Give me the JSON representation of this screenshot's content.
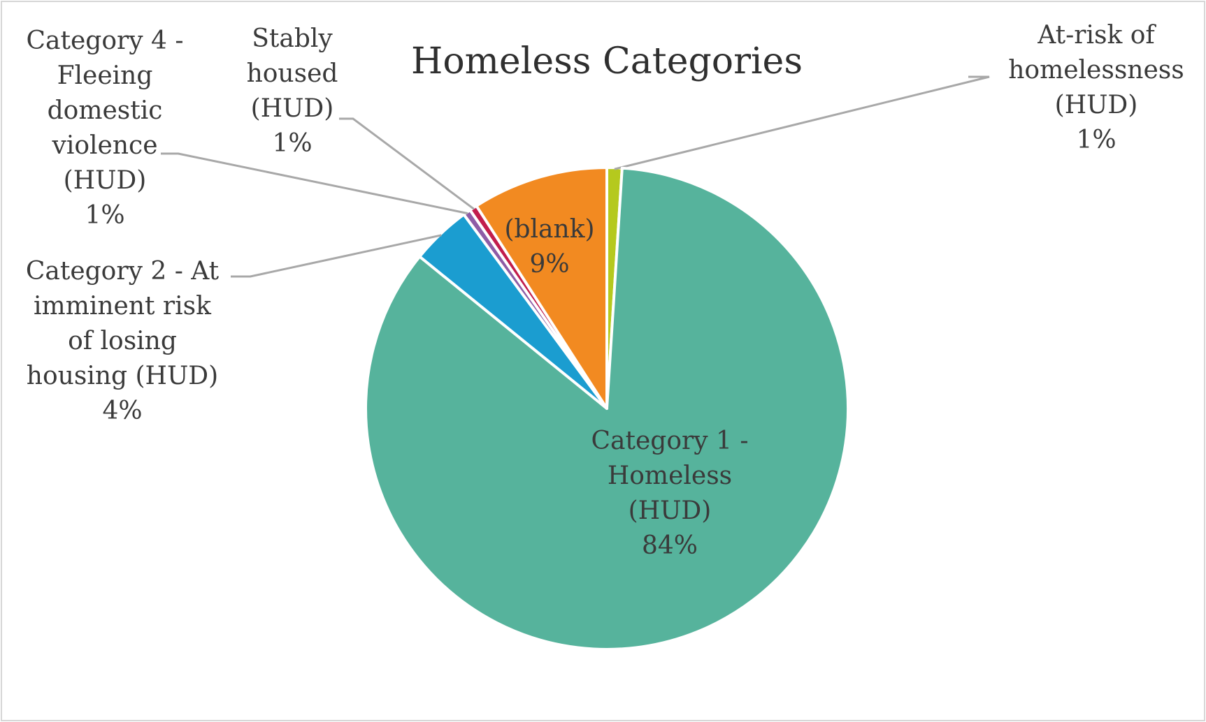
{
  "chart_data": {
    "type": "pie",
    "title": "Homeless Categories",
    "slices": [
      {
        "label": "At-risk of homelessness (HUD)",
        "value": 1,
        "pct_label": "1%",
        "color": "#b5c91e"
      },
      {
        "label": "Category 1 - Homeless (HUD)",
        "value": 84,
        "pct_label": "84%",
        "color": "#56b39c"
      },
      {
        "label": "Category 2 - At imminent risk of losing housing (HUD)",
        "value": 4,
        "pct_label": "4%",
        "color": "#1b9dd0"
      },
      {
        "label": "Category 4 - Fleeing domestic violence (HUD)",
        "value": 0.5,
        "pct_label": "1%",
        "color": "#8e5ca6"
      },
      {
        "label": "Stably housed (HUD)",
        "value": 0.5,
        "pct_label": "1%",
        "color": "#c21d4c"
      },
      {
        "label": "(blank)",
        "value": 9,
        "pct_label": "9%",
        "color": "#f28a21"
      }
    ],
    "leader_line_color": "#a8a8a8",
    "border_color": "#d6d6d6"
  }
}
